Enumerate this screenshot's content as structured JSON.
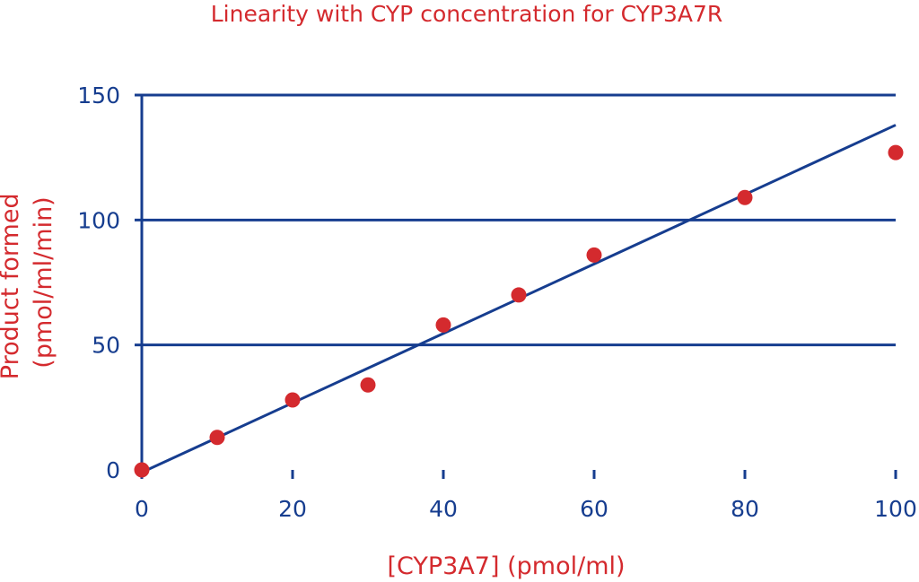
{
  "chart_data": {
    "type": "scatter",
    "title": "Linearity with CYP concentration for CYP3A7R",
    "xlabel": "[CYP3A7] (pmol/ml)",
    "ylabel_lines": [
      "Product formed",
      "(pmol/ml/min)"
    ],
    "xlim": [
      0,
      100
    ],
    "ylim": [
      0,
      150
    ],
    "x_ticks": [
      0,
      20,
      40,
      60,
      80,
      100
    ],
    "y_ticks": [
      0,
      50,
      100,
      150
    ],
    "grid": "horizontal",
    "series": [
      {
        "points": [
          {
            "x": 0,
            "y": 0
          },
          {
            "x": 10,
            "y": 13
          },
          {
            "x": 20,
            "y": 28
          },
          {
            "x": 30,
            "y": 34
          },
          {
            "x": 40,
            "y": 58
          },
          {
            "x": 50,
            "y": 70
          },
          {
            "x": 60,
            "y": 86
          },
          {
            "x": 80,
            "y": 109
          },
          {
            "x": 100,
            "y": 127
          }
        ]
      }
    ],
    "trendline": {
      "x0": 0,
      "y0": -1,
      "x1": 100,
      "y1": 138
    },
    "colors": {
      "points": "#d42a2e",
      "trendline": "#163d8f",
      "axes": "#163d8f",
      "grid": "#163d8f",
      "title": "#d42a2e",
      "axis_labels": "#d42a2e",
      "tick_labels": "#163d8f"
    }
  }
}
